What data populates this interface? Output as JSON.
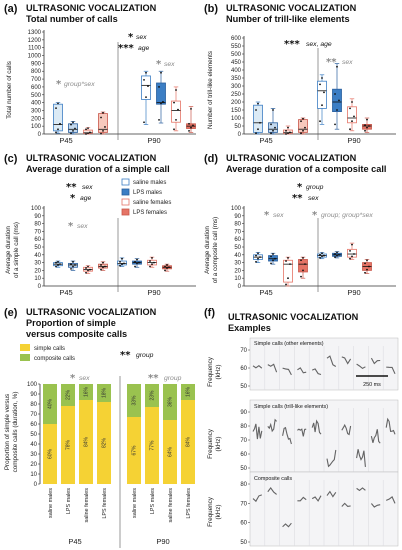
{
  "colors": {
    "saline_males": "#ffffff",
    "lps_males": "#3c7ec4",
    "saline_females": "#ffffff",
    "lps_females": "#e57466",
    "saline_males_p45": "#dbeaf5",
    "lps_males_p45": "#c4d9ee",
    "saline_females_p45": "#fde9e3",
    "lps_females_p45": "#f7c9bd",
    "simple": "#f5d234",
    "composite": "#9ac24f"
  },
  "panel_a": {
    "label": "(a)",
    "title1": "ULTRASONIC VOCALIZATION",
    "title2": "Total number of calls",
    "star_sex": "* sex",
    "star_age": "*** age",
    "star_gray": "* sex",
    "anno_gray": "* group*sex",
    "stars": [
      {
        "text": "*",
        "label": "sex",
        "color": "black"
      },
      {
        "text": "***",
        "label": "age",
        "color": "black"
      },
      {
        "text": "*",
        "label": "sex",
        "color": "gray"
      },
      {
        "text": "*",
        "label": "group*sex",
        "color": "gray"
      }
    ]
  },
  "panel_b": {
    "label": "(b)",
    "title1": "ULTRASONIC VOCALIZATION",
    "title2": "Number of trill-like elements"
  },
  "panel_c": {
    "label": "(c)",
    "title1": "ULTRASONIC VOCALIZATION",
    "title2": "Average duration of a simple call"
  },
  "panel_d": {
    "label": "(d)",
    "title1": "ULTRASONIC VOCALIZATION",
    "title2": "Average duration of a composite call"
  },
  "panel_e": {
    "label": "(e)",
    "title1": "ULTRASONIC VOCALIZATION",
    "title2": "Proportion of simple",
    "title3": "versus composite calls"
  },
  "panel_f": {
    "label": "(f)",
    "title1": "ULTRASONIC VOCALIZATION",
    "title2": "Examples",
    "ylabel": "Frequency",
    "yunit": "(kHz)",
    "sub1": "Simple calls (other elements)",
    "sub2": "Simple calls (trill-like elements)",
    "sub3": "Composite calls",
    "scale": "250 ms",
    "ticks1": [
      "70",
      "60",
      "50"
    ],
    "ticks2": [
      "90",
      "80",
      "70",
      "60",
      "50"
    ],
    "ticks3": [
      "80",
      "70",
      "60",
      "50"
    ]
  },
  "legend": [
    {
      "label": "saline males",
      "key": "saline_males"
    },
    {
      "label": "LPS males",
      "key": "lps_males"
    },
    {
      "label": "saline females",
      "key": "saline_females"
    },
    {
      "label": "LPS females",
      "key": "lps_females"
    }
  ],
  "legend_e": [
    {
      "label": "simple calls",
      "key": "simple"
    },
    {
      "label": "composite calls",
      "key": "composite"
    }
  ],
  "chart_data": [
    {
      "type": "box",
      "panel": "a",
      "title": "Total number of calls",
      "ylabel": "Total number of calls",
      "ylim": [
        0,
        1300
      ],
      "yticks": [
        "0",
        "100",
        "200",
        "300",
        "400",
        "500",
        "600",
        "700",
        "800",
        "900",
        "1000",
        "1100",
        "1200",
        "1300"
      ],
      "groups": [
        "P45",
        "P90"
      ],
      "series_names": [
        "saline males",
        "LPS males",
        "saline females",
        "LPS females"
      ],
      "boxes": [
        {
          "group": "P45",
          "series": "saline males",
          "min": 10,
          "q1": 40,
          "median": 120,
          "q3": 380,
          "max": 400,
          "points": [
            20,
            60,
            130,
            330,
            390
          ]
        },
        {
          "group": "P45",
          "series": "LPS males",
          "min": 0,
          "q1": 20,
          "median": 60,
          "q3": 130,
          "max": 160,
          "points": [
            10,
            40,
            70,
            120,
            150
          ]
        },
        {
          "group": "P45",
          "series": "saline females",
          "min": 0,
          "q1": 5,
          "median": 15,
          "q3": 50,
          "max": 80,
          "points": [
            0,
            10,
            20,
            60,
            75
          ]
        },
        {
          "group": "P45",
          "series": "LPS females",
          "min": 0,
          "q1": 20,
          "median": 60,
          "q3": 260,
          "max": 280,
          "points": [
            5,
            40,
            90,
            210,
            270
          ]
        },
        {
          "group": "P90",
          "series": "saline males",
          "min": 120,
          "q1": 440,
          "median": 620,
          "q3": 740,
          "max": 800,
          "points": [
            150,
            470,
            610,
            690,
            780
          ]
        },
        {
          "group": "P90",
          "series": "LPS males",
          "min": 140,
          "q1": 380,
          "median": 400,
          "q3": 650,
          "max": 800,
          "points": [
            180,
            390,
            410,
            600,
            780
          ]
        },
        {
          "group": "P90",
          "series": "saline females",
          "min": 40,
          "q1": 150,
          "median": 300,
          "q3": 420,
          "max": 600,
          "points": [
            60,
            180,
            310,
            400,
            560
          ]
        },
        {
          "group": "P90",
          "series": "LPS females",
          "min": 20,
          "q1": 70,
          "median": 100,
          "q3": 130,
          "max": 350,
          "points": [
            40,
            80,
            110,
            130,
            320
          ]
        }
      ],
      "annotations": [
        "* sex",
        "*** age",
        "* sex",
        "* group*sex"
      ]
    },
    {
      "type": "box",
      "panel": "b",
      "title": "Number of trill-like elements",
      "ylabel": "Number of trill-like elements",
      "ylim": [
        0,
        600
      ],
      "yticks": [
        "0",
        "50",
        "100",
        "150",
        "200",
        "250",
        "300",
        "350",
        "400",
        "450",
        "500",
        "550",
        "600"
      ],
      "groups": [
        "P45",
        "P90"
      ],
      "series_names": [
        "saline males",
        "LPS males",
        "saline females",
        "LPS females"
      ],
      "boxes": [
        {
          "group": "P45",
          "series": "saline males",
          "min": 0,
          "q1": 10,
          "median": 70,
          "q3": 180,
          "max": 200,
          "points": [
            5,
            30,
            70,
            150,
            190
          ]
        },
        {
          "group": "P45",
          "series": "LPS males",
          "min": 0,
          "q1": 10,
          "median": 30,
          "q3": 70,
          "max": 160,
          "points": [
            5,
            20,
            40,
            60,
            150
          ]
        },
        {
          "group": "P45",
          "series": "saline females",
          "min": 0,
          "q1": 2,
          "median": 8,
          "q3": 25,
          "max": 50,
          "points": [
            0,
            5,
            10,
            20,
            40
          ]
        },
        {
          "group": "P45",
          "series": "LPS females",
          "min": 0,
          "q1": 10,
          "median": 30,
          "q3": 90,
          "max": 100,
          "points": [
            5,
            20,
            40,
            80,
            95
          ]
        },
        {
          "group": "P90",
          "series": "saline males",
          "min": 60,
          "q1": 160,
          "median": 270,
          "q3": 330,
          "max": 370,
          "points": [
            80,
            180,
            260,
            310,
            350
          ]
        },
        {
          "group": "P90",
          "series": "LPS males",
          "min": 30,
          "q1": 140,
          "median": 200,
          "q3": 280,
          "max": 440,
          "points": [
            60,
            150,
            210,
            250,
            420
          ]
        },
        {
          "group": "P90",
          "series": "saline females",
          "min": 20,
          "q1": 70,
          "median": 100,
          "q3": 170,
          "max": 220,
          "points": [
            30,
            80,
            110,
            160,
            200
          ]
        },
        {
          "group": "P90",
          "series": "LPS females",
          "min": 10,
          "q1": 30,
          "median": 50,
          "q3": 60,
          "max": 100,
          "points": [
            20,
            40,
            50,
            55,
            90
          ]
        }
      ],
      "annotations": [
        "*** sex, age",
        "** sex"
      ]
    },
    {
      "type": "box",
      "panel": "c",
      "title": "Average duration of a simple call",
      "ylabel": "Average duration of a simple call (ms)",
      "ylim": [
        0,
        100
      ],
      "yticks": [
        "0",
        "10",
        "20",
        "30",
        "40",
        "50",
        "60",
        "70",
        "80",
        "90",
        "100"
      ],
      "groups": [
        "P45",
        "P90"
      ],
      "series_names": [
        "saline males",
        "LPS males",
        "saline females",
        "LPS females"
      ],
      "boxes": [
        {
          "group": "P45",
          "series": "saline males",
          "min": 24,
          "q1": 26,
          "median": 28,
          "q3": 30,
          "max": 32,
          "points": [
            25,
            27,
            28,
            30,
            31
          ]
        },
        {
          "group": "P45",
          "series": "LPS males",
          "min": 20,
          "q1": 24,
          "median": 27,
          "q3": 29,
          "max": 32,
          "points": [
            22,
            25,
            27,
            28,
            31
          ]
        },
        {
          "group": "P45",
          "series": "saline females",
          "min": 16,
          "q1": 19,
          "median": 21,
          "q3": 24,
          "max": 26,
          "points": [
            17,
            20,
            21,
            23,
            25
          ]
        },
        {
          "group": "P45",
          "series": "LPS females",
          "min": 20,
          "q1": 23,
          "median": 25,
          "q3": 28,
          "max": 31,
          "points": [
            21,
            24,
            25,
            27,
            30
          ]
        },
        {
          "group": "P90",
          "series": "saline males",
          "min": 25,
          "q1": 27,
          "median": 29,
          "q3": 32,
          "max": 36,
          "points": [
            26,
            28,
            29,
            31,
            35
          ]
        },
        {
          "group": "P90",
          "series": "LPS males",
          "min": 24,
          "q1": 28,
          "median": 30,
          "q3": 32,
          "max": 35,
          "points": [
            25,
            29,
            30,
            31,
            34
          ]
        },
        {
          "group": "P90",
          "series": "saline females",
          "min": 24,
          "q1": 27,
          "median": 30,
          "q3": 33,
          "max": 37,
          "points": [
            25,
            28,
            30,
            32,
            36
          ]
        },
        {
          "group": "P90",
          "series": "LPS females",
          "min": 19,
          "q1": 22,
          "median": 24,
          "q3": 26,
          "max": 28,
          "points": [
            20,
            23,
            24,
            25,
            27
          ]
        }
      ],
      "annotations": [
        "** sex",
        "* age",
        "* sex"
      ]
    },
    {
      "type": "box",
      "panel": "d",
      "title": "Average duration of a composite call",
      "ylabel": "Average duration of a composite call (ms)",
      "ylim": [
        0,
        100
      ],
      "yticks": [
        "0",
        "10",
        "20",
        "30",
        "40",
        "50",
        "60",
        "70",
        "80",
        "90",
        "100"
      ],
      "groups": [
        "P45",
        "P90"
      ],
      "series_names": [
        "saline males",
        "LPS males",
        "saline females",
        "LPS females"
      ],
      "boxes": [
        {
          "group": "P45",
          "series": "saline males",
          "min": 30,
          "q1": 34,
          "median": 37,
          "q3": 40,
          "max": 43,
          "points": [
            31,
            35,
            37,
            39,
            42
          ]
        },
        {
          "group": "P45",
          "series": "LPS males",
          "min": 28,
          "q1": 32,
          "median": 35,
          "q3": 39,
          "max": 42,
          "points": [
            29,
            33,
            35,
            38,
            41
          ]
        },
        {
          "group": "P45",
          "series": "saline females",
          "min": 0,
          "q1": 5,
          "median": 28,
          "q3": 33,
          "max": 37,
          "points": [
            2,
            10,
            28,
            32,
            36
          ]
        },
        {
          "group": "P45",
          "series": "LPS females",
          "min": 10,
          "q1": 18,
          "median": 28,
          "q3": 34,
          "max": 37,
          "points": [
            12,
            20,
            28,
            33,
            36
          ]
        },
        {
          "group": "P90",
          "series": "saline males",
          "min": 35,
          "q1": 37,
          "median": 39,
          "q3": 41,
          "max": 43,
          "points": [
            36,
            38,
            39,
            40,
            42
          ]
        },
        {
          "group": "P90",
          "series": "LPS males",
          "min": 36,
          "q1": 38,
          "median": 40,
          "q3": 42,
          "max": 44,
          "points": [
            37,
            39,
            40,
            41,
            43
          ]
        },
        {
          "group": "P90",
          "series": "saline females",
          "min": 34,
          "q1": 37,
          "median": 41,
          "q3": 47,
          "max": 55,
          "points": [
            35,
            38,
            41,
            45,
            53
          ]
        },
        {
          "group": "P90",
          "series": "LPS females",
          "min": 16,
          "q1": 20,
          "median": 25,
          "q3": 30,
          "max": 34,
          "points": [
            17,
            21,
            25,
            29,
            33
          ]
        }
      ],
      "annotations": [
        "* group",
        "** sex",
        "* sex",
        "* group; group*sex"
      ]
    },
    {
      "type": "bar",
      "stacked": true,
      "panel": "e",
      "title": "Proportion of simple versus composite calls",
      "ylabel": "Proportion of simple versus composite calls (duration, %)",
      "ylim": [
        0,
        100
      ],
      "yticks": [
        "0",
        "10",
        "20",
        "30",
        "40",
        "50",
        "60",
        "70",
        "80",
        "90",
        "100"
      ],
      "groups": [
        "P45",
        "P90"
      ],
      "categories": [
        "saline males",
        "LPS males",
        "saline females",
        "LPS females",
        "saline males",
        "LPS males",
        "saline females",
        "LPS females"
      ],
      "series": [
        {
          "name": "simple calls",
          "values": [
            60,
            78,
            84,
            82,
            67,
            77,
            64,
            84
          ],
          "labels": [
            "60%",
            "78%",
            "84%",
            "82%",
            "67%",
            "77%",
            "64%",
            "84%"
          ]
        },
        {
          "name": "composite calls",
          "values": [
            40,
            22,
            16,
            18,
            33,
            23,
            36,
            16
          ],
          "labels": [
            "40%",
            "22%",
            "16%",
            "18%",
            "33%",
            "23%",
            "36%",
            "16%"
          ]
        }
      ],
      "annotations": [
        "** group",
        "* sex",
        "** group"
      ]
    }
  ]
}
